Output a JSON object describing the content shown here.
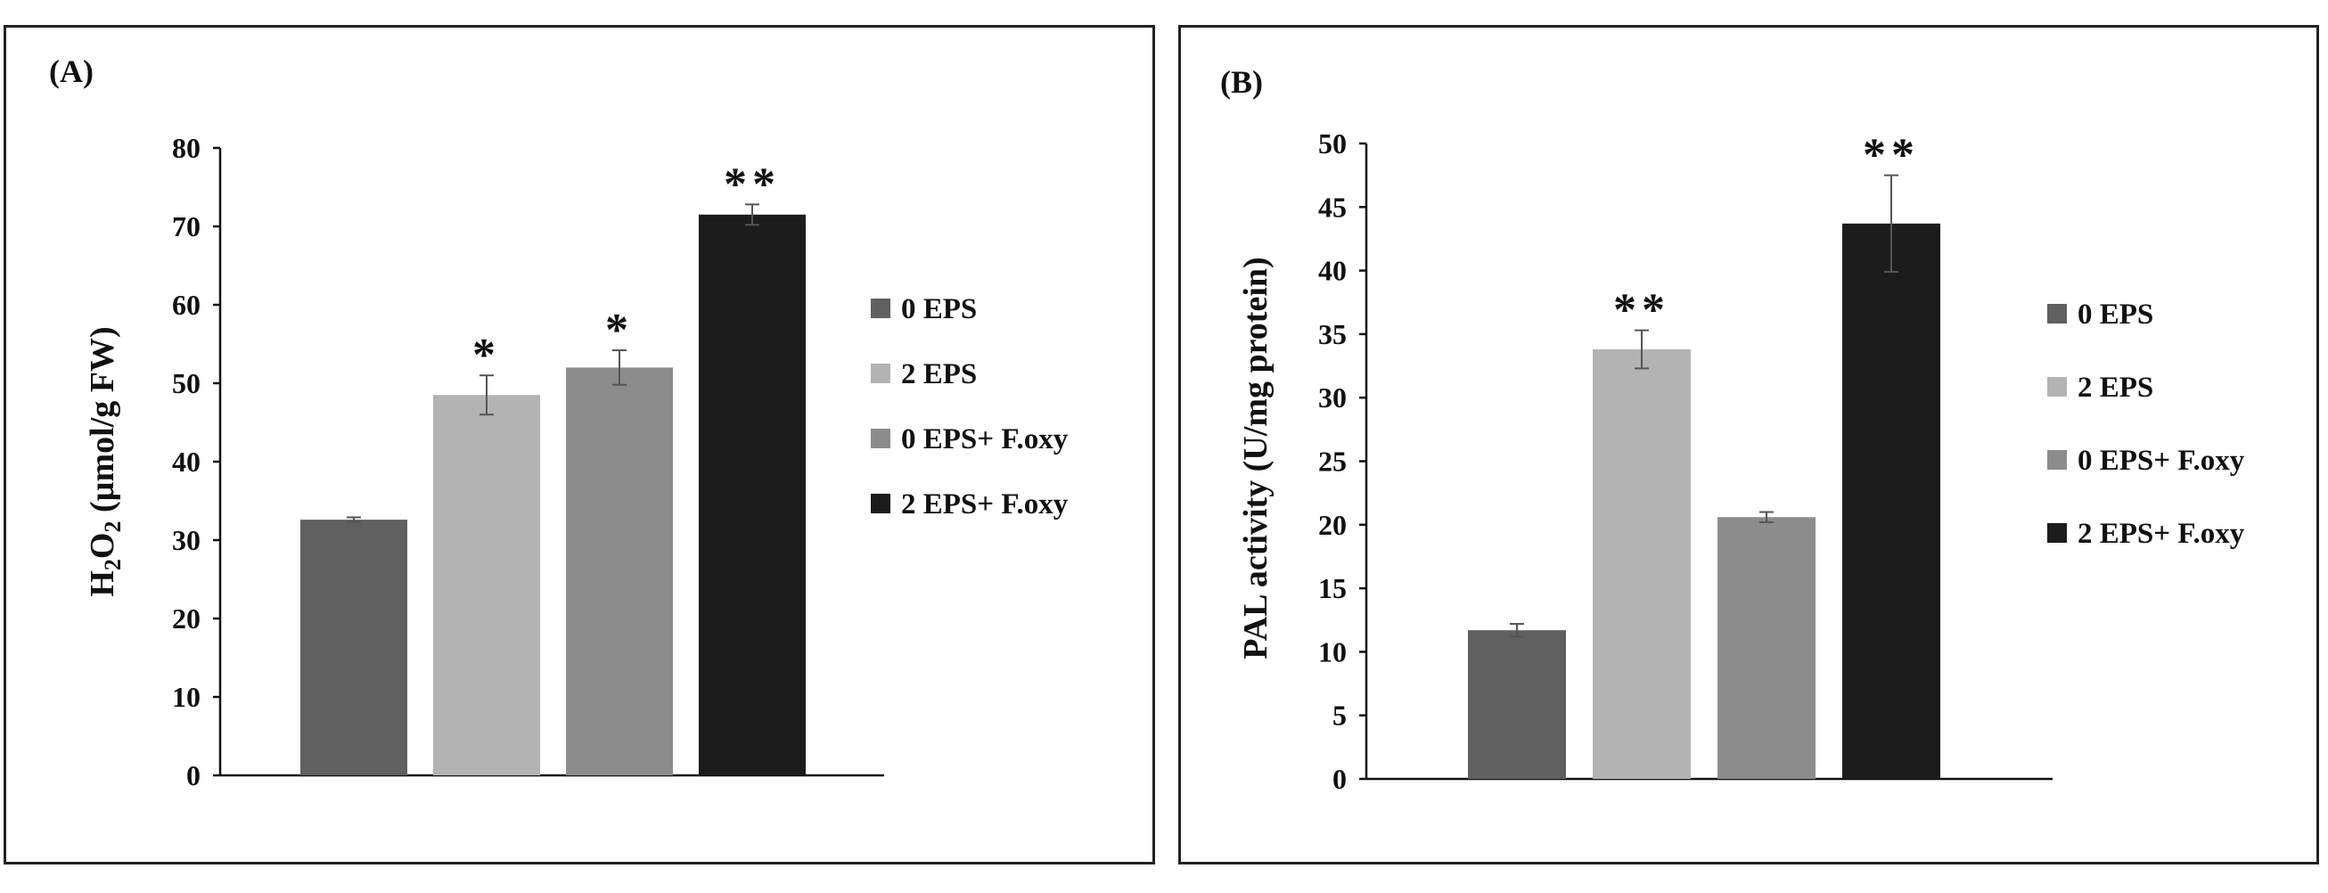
{
  "chart_data": [
    {
      "type": "bar",
      "panel_label": "(A)",
      "ylabel": "H2O2 (µmol/g FW)",
      "ylabel_parts": {
        "pre": "H",
        "sub1": "2",
        "mid": "O",
        "sub2": "2",
        "post": " (µmol/g FW)"
      },
      "ylim": [
        0,
        80
      ],
      "yticks": [
        0,
        10,
        20,
        30,
        40,
        50,
        60,
        70,
        80
      ],
      "categories": [
        "0 EPS",
        "2 EPS",
        "0 EPS+ F.oxy",
        "2 EPS+ F.oxy"
      ],
      "values": [
        32.6,
        48.5,
        52.0,
        71.5
      ],
      "errors": [
        0.3,
        2.5,
        2.2,
        1.3
      ],
      "significance": [
        "",
        "*",
        "*",
        "**"
      ],
      "colors": [
        "#606060",
        "#b3b3b3",
        "#8c8c8c",
        "#1c1c1c"
      ],
      "legend": [
        "0 EPS",
        "2 EPS",
        "0 EPS+ F.oxy",
        "2 EPS+ F.oxy"
      ],
      "legend_position": "right"
    },
    {
      "type": "bar",
      "panel_label": "(B)",
      "ylabel": "PAL activity (U/mg protein)",
      "ylim": [
        0,
        50
      ],
      "yticks": [
        0,
        5,
        10,
        15,
        20,
        25,
        30,
        35,
        40,
        45,
        50
      ],
      "categories": [
        "0 EPS",
        "2 EPS",
        "0 EPS+ F.oxy",
        "2 EPS+ F.oxy"
      ],
      "values": [
        11.7,
        33.8,
        20.6,
        43.7
      ],
      "errors": [
        0.5,
        1.5,
        0.4,
        3.8
      ],
      "significance": [
        "",
        "**",
        "",
        "**"
      ],
      "colors": [
        "#606060",
        "#b3b3b3",
        "#8c8c8c",
        "#1c1c1c"
      ],
      "legend": [
        "0 EPS",
        "2 EPS",
        "0 EPS+ F.oxy",
        "2 EPS+ F.oxy"
      ],
      "legend_position": "right"
    }
  ]
}
